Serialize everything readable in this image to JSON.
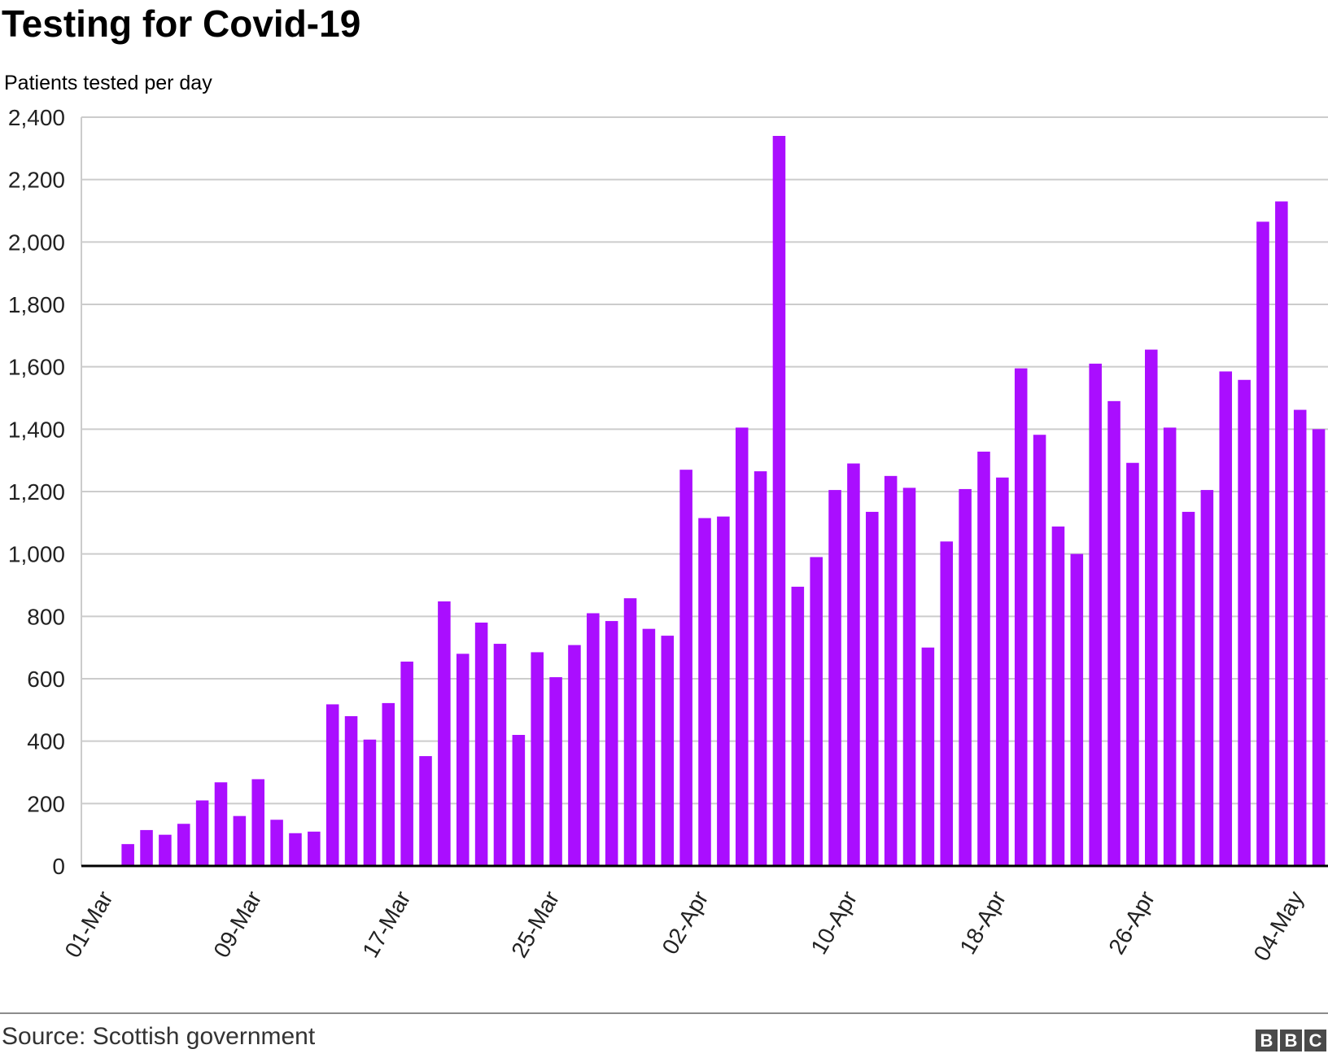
{
  "header": {
    "title": "Testing for Covid-19",
    "subtitle": "Patients tested per day"
  },
  "footer": {
    "source": "Source: Scottish government",
    "logo": [
      "B",
      "B",
      "C"
    ]
  },
  "chart_data": {
    "type": "bar",
    "title": "Testing for Covid-19",
    "ylabel": "Patients tested per day",
    "xlabel": "",
    "ylim": [
      0,
      2400
    ],
    "yticks": [
      0,
      200,
      400,
      600,
      800,
      1000,
      1200,
      1400,
      1600,
      1800,
      2000,
      2200,
      2400
    ],
    "ytick_labels": [
      "0",
      "200",
      "400",
      "600",
      "800",
      "1,000",
      "1,200",
      "1,400",
      "1,600",
      "1,800",
      "2,000",
      "2,200",
      "2,400"
    ],
    "xtick_labels": [
      "01-Mar",
      "09-Mar",
      "17-Mar",
      "25-Mar",
      "02-Apr",
      "10-Apr",
      "18-Apr",
      "26-Apr",
      "04-May"
    ],
    "xtick_every": 8,
    "grid": true,
    "bar_color": "#aa0eff",
    "categories": [
      "01-Mar",
      "02-Mar",
      "03-Mar",
      "04-Mar",
      "05-Mar",
      "06-Mar",
      "07-Mar",
      "08-Mar",
      "09-Mar",
      "10-Mar",
      "11-Mar",
      "12-Mar",
      "13-Mar",
      "14-Mar",
      "15-Mar",
      "16-Mar",
      "17-Mar",
      "18-Mar",
      "19-Mar",
      "20-Mar",
      "21-Mar",
      "22-Mar",
      "23-Mar",
      "24-Mar",
      "25-Mar",
      "26-Mar",
      "27-Mar",
      "28-Mar",
      "29-Mar",
      "30-Mar",
      "31-Mar",
      "01-Apr",
      "02-Apr",
      "03-Apr",
      "04-Apr",
      "05-Apr",
      "06-Apr",
      "07-Apr",
      "08-Apr",
      "09-Apr",
      "10-Apr",
      "11-Apr",
      "12-Apr",
      "13-Apr",
      "14-Apr",
      "15-Apr",
      "16-Apr",
      "17-Apr",
      "18-Apr",
      "19-Apr",
      "20-Apr",
      "21-Apr",
      "22-Apr",
      "23-Apr",
      "24-Apr",
      "25-Apr",
      "26-Apr",
      "27-Apr",
      "28-Apr",
      "29-Apr",
      "30-Apr",
      "01-May",
      "02-May",
      "03-May",
      "04-May",
      "05-May",
      "06-May"
    ],
    "values": [
      null,
      null,
      70,
      115,
      100,
      135,
      210,
      268,
      160,
      278,
      148,
      105,
      110,
      518,
      480,
      405,
      522,
      655,
      352,
      848,
      680,
      780,
      712,
      420,
      685,
      605,
      708,
      810,
      785,
      858,
      760,
      738,
      1270,
      1115,
      1120,
      1405,
      1265,
      2340,
      895,
      990,
      1205,
      1290,
      1135,
      1250,
      1212,
      700,
      1040,
      1208,
      1328,
      1245,
      1595,
      1382,
      1088,
      1000,
      1610,
      1490,
      1292,
      1655,
      1405,
      1135,
      1205,
      1585,
      1558,
      2065,
      2130,
      1462,
      1400
    ]
  }
}
